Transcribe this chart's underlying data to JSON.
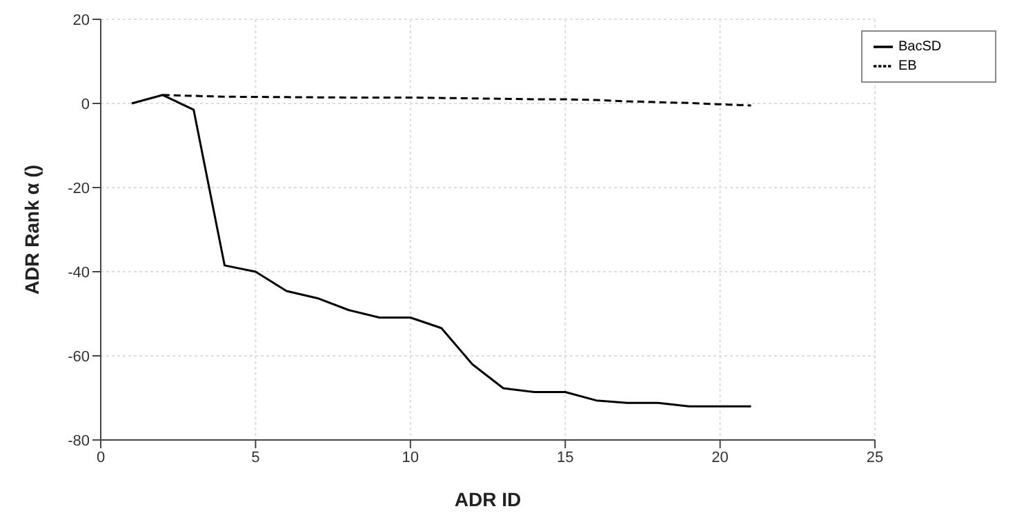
{
  "chart_data": {
    "type": "line",
    "xlabel": "ADR ID",
    "ylabel": "ADR Rank α ()",
    "xlim": [
      0,
      25
    ],
    "xticks": [
      0,
      5,
      10,
      15,
      20,
      25
    ],
    "ylim": [
      -80,
      20
    ],
    "yticks": [
      -80,
      -60,
      -40,
      -20,
      0,
      20
    ],
    "grid": true,
    "legend": "top right",
    "marker": "none",
    "series": [
      {
        "name": "BacSD",
        "color": "#000000",
        "line_style": "solid",
        "x": [
          1,
          2,
          3,
          4,
          5,
          6,
          7,
          8,
          9,
          10,
          11,
          12,
          13,
          14,
          15,
          16,
          17,
          18,
          19,
          20,
          21
        ],
        "values": [
          0,
          2,
          -1.5,
          -38.5,
          -40,
          -44.6,
          -46.3,
          -49.1,
          -50.9,
          -50.9,
          -53.4,
          -62,
          -67.7,
          -68.6,
          -68.6,
          -70.6,
          -71.2,
          -71.2,
          -72,
          -72,
          -72
        ]
      },
      {
        "name": "EB",
        "color": "#000000",
        "line_style": "dashed",
        "x": [
          2,
          4,
          6,
          8,
          10,
          12,
          14,
          15,
          16,
          17,
          18,
          19,
          20,
          21
        ],
        "values": [
          2,
          1.6,
          1.5,
          1.4,
          1.4,
          1.2,
          1,
          1,
          0.8,
          0.5,
          0.3,
          0.1,
          -0.2,
          -0.5
        ]
      }
    ]
  }
}
